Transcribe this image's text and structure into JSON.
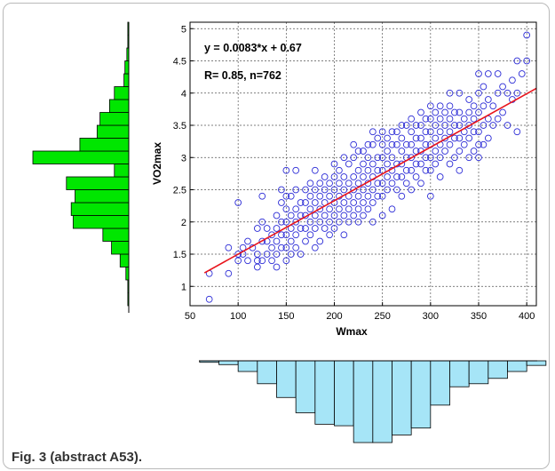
{
  "caption": "Fig. 3 (abstract A53).",
  "chart_data": {
    "type": "scatter",
    "title": "",
    "xlabel": "Wmax",
    "ylabel": "VO2max",
    "xlim": [
      50,
      410
    ],
    "ylim": [
      0.7,
      5.1
    ],
    "x_ticks": [
      50,
      100,
      150,
      200,
      250,
      300,
      350,
      400
    ],
    "y_ticks": [
      1,
      1.5,
      2,
      2.5,
      3,
      3.5,
      4,
      4.5,
      5
    ],
    "grid": true,
    "annotations": [
      "y = 0.0083*x + 0.67",
      "R= 0.85, n=762"
    ],
    "fit_line": {
      "slope": 0.0083,
      "intercept": 0.67,
      "color": "#e8141c"
    },
    "marker_color": "#2b2bd6",
    "series": [
      {
        "points": [
          [
            70,
            0.8
          ],
          [
            70,
            1.2
          ],
          [
            90,
            1.2
          ],
          [
            90,
            1.6
          ],
          [
            100,
            1.4
          ],
          [
            100,
            1.5
          ],
          [
            100,
            2.3
          ],
          [
            105,
            1.6
          ],
          [
            105,
            1.5
          ],
          [
            110,
            1.4
          ],
          [
            110,
            1.7
          ],
          [
            115,
            1.6
          ],
          [
            120,
            1.3
          ],
          [
            120,
            1.4
          ],
          [
            120,
            1.5
          ],
          [
            120,
            1.9
          ],
          [
            125,
            1.4
          ],
          [
            125,
            1.7
          ],
          [
            125,
            2.0
          ],
          [
            125,
            2.4
          ],
          [
            130,
            1.5
          ],
          [
            130,
            1.7
          ],
          [
            130,
            1.9
          ],
          [
            135,
            1.4
          ],
          [
            135,
            1.6
          ],
          [
            135,
            1.8
          ],
          [
            140,
            1.3
          ],
          [
            140,
            1.5
          ],
          [
            140,
            1.7
          ],
          [
            140,
            1.9
          ],
          [
            140,
            2.1
          ],
          [
            145,
            1.6
          ],
          [
            145,
            1.8
          ],
          [
            145,
            2.0
          ],
          [
            145,
            2.3
          ],
          [
            145,
            2.5
          ],
          [
            150,
            1.4
          ],
          [
            150,
            1.6
          ],
          [
            150,
            1.8
          ],
          [
            150,
            2.0
          ],
          [
            150,
            2.2
          ],
          [
            150,
            2.4
          ],
          [
            150,
            2.8
          ],
          [
            155,
            1.5
          ],
          [
            155,
            1.7
          ],
          [
            155,
            1.9
          ],
          [
            155,
            2.1
          ],
          [
            155,
            2.4
          ],
          [
            160,
            1.6
          ],
          [
            160,
            1.8
          ],
          [
            160,
            2.0
          ],
          [
            160,
            2.2
          ],
          [
            160,
            2.5
          ],
          [
            160,
            2.8
          ],
          [
            165,
            1.5
          ],
          [
            165,
            1.9
          ],
          [
            165,
            2.1
          ],
          [
            165,
            2.3
          ],
          [
            170,
            1.7
          ],
          [
            170,
            1.9
          ],
          [
            170,
            2.1
          ],
          [
            170,
            2.3
          ],
          [
            170,
            2.5
          ],
          [
            175,
            1.8
          ],
          [
            175,
            2.0
          ],
          [
            175,
            2.2
          ],
          [
            175,
            2.4
          ],
          [
            175,
            2.6
          ],
          [
            180,
            1.6
          ],
          [
            180,
            1.9
          ],
          [
            180,
            2.1
          ],
          [
            180,
            2.3
          ],
          [
            180,
            2.5
          ],
          [
            180,
            2.8
          ],
          [
            185,
            1.7
          ],
          [
            185,
            2.0
          ],
          [
            185,
            2.2
          ],
          [
            185,
            2.4
          ],
          [
            185,
            2.6
          ],
          [
            190,
            1.9
          ],
          [
            190,
            2.1
          ],
          [
            190,
            2.3
          ],
          [
            190,
            2.5
          ],
          [
            190,
            2.7
          ],
          [
            195,
            1.8
          ],
          [
            195,
            2.0
          ],
          [
            195,
            2.2
          ],
          [
            195,
            2.4
          ],
          [
            195,
            2.6
          ],
          [
            200,
            1.9
          ],
          [
            200,
            2.1
          ],
          [
            200,
            2.3
          ],
          [
            200,
            2.5
          ],
          [
            200,
            2.7
          ],
          [
            200,
            2.9
          ],
          [
            205,
            2.0
          ],
          [
            205,
            2.2
          ],
          [
            205,
            2.4
          ],
          [
            205,
            2.6
          ],
          [
            205,
            2.8
          ],
          [
            210,
            1.8
          ],
          [
            210,
            2.1
          ],
          [
            210,
            2.3
          ],
          [
            210,
            2.5
          ],
          [
            210,
            2.7
          ],
          [
            210,
            3.0
          ],
          [
            215,
            2.0
          ],
          [
            215,
            2.2
          ],
          [
            215,
            2.4
          ],
          [
            215,
            2.6
          ],
          [
            215,
            2.9
          ],
          [
            220,
            2.1
          ],
          [
            220,
            2.3
          ],
          [
            220,
            2.5
          ],
          [
            220,
            2.7
          ],
          [
            220,
            3.0
          ],
          [
            220,
            3.2
          ],
          [
            225,
            2.0
          ],
          [
            225,
            2.2
          ],
          [
            225,
            2.4
          ],
          [
            225,
            2.6
          ],
          [
            225,
            2.8
          ],
          [
            225,
            3.1
          ],
          [
            230,
            2.1
          ],
          [
            230,
            2.3
          ],
          [
            230,
            2.5
          ],
          [
            230,
            2.7
          ],
          [
            230,
            2.9
          ],
          [
            230,
            3.1
          ],
          [
            235,
            2.2
          ],
          [
            235,
            2.4
          ],
          [
            235,
            2.6
          ],
          [
            235,
            2.8
          ],
          [
            235,
            3.0
          ],
          [
            235,
            3.2
          ],
          [
            240,
            2.0
          ],
          [
            240,
            2.3
          ],
          [
            240,
            2.5
          ],
          [
            240,
            2.7
          ],
          [
            240,
            2.9
          ],
          [
            240,
            3.2
          ],
          [
            240,
            3.4
          ],
          [
            245,
            2.4
          ],
          [
            245,
            2.6
          ],
          [
            245,
            2.8
          ],
          [
            245,
            3.0
          ],
          [
            245,
            3.3
          ],
          [
            250,
            2.1
          ],
          [
            250,
            2.4
          ],
          [
            250,
            2.6
          ],
          [
            250,
            2.8
          ],
          [
            250,
            3.0
          ],
          [
            250,
            3.2
          ],
          [
            250,
            3.4
          ],
          [
            255,
            2.5
          ],
          [
            255,
            2.7
          ],
          [
            255,
            2.9
          ],
          [
            255,
            3.1
          ],
          [
            255,
            3.3
          ],
          [
            260,
            2.2
          ],
          [
            260,
            2.6
          ],
          [
            260,
            2.8
          ],
          [
            260,
            3.0
          ],
          [
            260,
            3.2
          ],
          [
            260,
            3.4
          ],
          [
            265,
            2.5
          ],
          [
            265,
            2.7
          ],
          [
            265,
            2.9
          ],
          [
            265,
            3.2
          ],
          [
            265,
            3.4
          ],
          [
            270,
            2.4
          ],
          [
            270,
            2.7
          ],
          [
            270,
            2.9
          ],
          [
            270,
            3.1
          ],
          [
            270,
            3.3
          ],
          [
            270,
            3.5
          ],
          [
            275,
            2.6
          ],
          [
            275,
            2.8
          ],
          [
            275,
            3.0
          ],
          [
            275,
            3.2
          ],
          [
            275,
            3.5
          ],
          [
            280,
            2.5
          ],
          [
            280,
            2.8
          ],
          [
            280,
            3.0
          ],
          [
            280,
            3.2
          ],
          [
            280,
            3.4
          ],
          [
            280,
            3.6
          ],
          [
            285,
            2.7
          ],
          [
            285,
            2.9
          ],
          [
            285,
            3.1
          ],
          [
            285,
            3.3
          ],
          [
            285,
            3.5
          ],
          [
            290,
            2.6
          ],
          [
            290,
            2.9
          ],
          [
            290,
            3.1
          ],
          [
            290,
            3.3
          ],
          [
            290,
            3.5
          ],
          [
            290,
            3.7
          ],
          [
            295,
            2.8
          ],
          [
            295,
            3.0
          ],
          [
            295,
            3.2
          ],
          [
            295,
            3.4
          ],
          [
            295,
            3.6
          ],
          [
            300,
            2.4
          ],
          [
            300,
            2.8
          ],
          [
            300,
            3.0
          ],
          [
            300,
            3.2
          ],
          [
            300,
            3.4
          ],
          [
            300,
            3.6
          ],
          [
            300,
            3.8
          ],
          [
            305,
            2.9
          ],
          [
            305,
            3.1
          ],
          [
            305,
            3.3
          ],
          [
            305,
            3.5
          ],
          [
            305,
            3.7
          ],
          [
            310,
            2.7
          ],
          [
            310,
            3.0
          ],
          [
            310,
            3.2
          ],
          [
            310,
            3.4
          ],
          [
            310,
            3.6
          ],
          [
            310,
            3.8
          ],
          [
            315,
            3.1
          ],
          [
            315,
            3.3
          ],
          [
            315,
            3.5
          ],
          [
            315,
            3.7
          ],
          [
            320,
            2.9
          ],
          [
            320,
            3.2
          ],
          [
            320,
            3.4
          ],
          [
            320,
            3.6
          ],
          [
            320,
            3.8
          ],
          [
            320,
            4.0
          ],
          [
            325,
            3.0
          ],
          [
            325,
            3.3
          ],
          [
            325,
            3.5
          ],
          [
            325,
            3.7
          ],
          [
            330,
            2.8
          ],
          [
            330,
            3.1
          ],
          [
            330,
            3.3
          ],
          [
            330,
            3.5
          ],
          [
            330,
            3.7
          ],
          [
            330,
            4.0
          ],
          [
            335,
            3.2
          ],
          [
            335,
            3.4
          ],
          [
            335,
            3.6
          ],
          [
            340,
            3.0
          ],
          [
            340,
            3.3
          ],
          [
            340,
            3.5
          ],
          [
            340,
            3.7
          ],
          [
            340,
            3.9
          ],
          [
            345,
            3.1
          ],
          [
            345,
            3.4
          ],
          [
            345,
            3.6
          ],
          [
            345,
            3.8
          ],
          [
            350,
            3.0
          ],
          [
            350,
            3.2
          ],
          [
            350,
            3.4
          ],
          [
            350,
            3.7
          ],
          [
            350,
            4.0
          ],
          [
            350,
            4.3
          ],
          [
            355,
            3.2
          ],
          [
            355,
            3.5
          ],
          [
            355,
            3.8
          ],
          [
            355,
            4.1
          ],
          [
            360,
            3.3
          ],
          [
            360,
            3.6
          ],
          [
            360,
            3.9
          ],
          [
            360,
            4.3
          ],
          [
            365,
            3.5
          ],
          [
            365,
            3.8
          ],
          [
            370,
            3.6
          ],
          [
            370,
            4.0
          ],
          [
            370,
            4.3
          ],
          [
            375,
            3.7
          ],
          [
            375,
            4.1
          ],
          [
            380,
            3.5
          ],
          [
            380,
            4.0
          ],
          [
            385,
            3.9
          ],
          [
            385,
            4.2
          ],
          [
            390,
            3.4
          ],
          [
            390,
            4.0
          ],
          [
            390,
            4.5
          ],
          [
            395,
            4.3
          ],
          [
            400,
            4.9
          ],
          [
            400,
            4.5
          ]
        ]
      }
    ],
    "histogram_y": {
      "bin_edges": [
        0.7,
        0.9,
        1.1,
        1.3,
        1.5,
        1.7,
        1.9,
        2.1,
        2.3,
        2.5,
        2.7,
        2.9,
        3.1,
        3.3,
        3.5,
        3.7,
        3.9,
        4.1,
        4.3,
        4.5,
        4.7,
        4.9,
        5.1
      ],
      "counts": [
        1,
        1,
        3,
        9,
        18,
        27,
        58,
        60,
        56,
        65,
        15,
        100,
        51,
        33,
        30,
        20,
        15,
        5,
        4,
        2,
        1,
        1
      ],
      "color": "#00e600"
    },
    "histogram_x": {
      "bin_edges": [
        60,
        80,
        100,
        120,
        140,
        160,
        180,
        200,
        220,
        240,
        260,
        280,
        300,
        320,
        340,
        360,
        380,
        400,
        420
      ],
      "counts": [
        2,
        5,
        14,
        30,
        48,
        68,
        83,
        85,
        107,
        107,
        97,
        88,
        58,
        34,
        30,
        23,
        14,
        6
      ],
      "color": "#a6e5f7"
    }
  }
}
